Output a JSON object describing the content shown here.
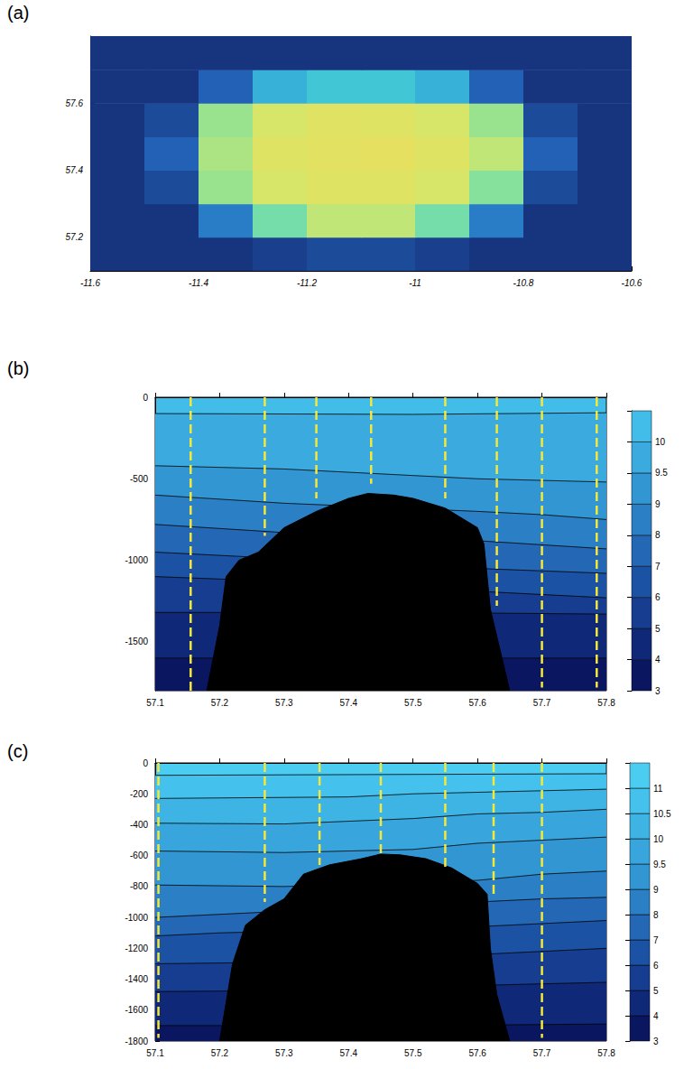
{
  "chart_data": [
    {
      "label": "(a)",
      "type": "heatmap",
      "x": [
        -11.55,
        -11.45,
        -11.35,
        -11.25,
        -11.15,
        -11.05,
        -10.95,
        -10.85,
        -10.75,
        -10.65
      ],
      "y": [
        57.15,
        57.25,
        57.35,
        57.45,
        57.55,
        57.65,
        57.75
      ],
      "z": [
        [
          -1800,
          -1800,
          -1800,
          -1750,
          -1700,
          -1700,
          -1750,
          -1800,
          -1800,
          -1800
        ],
        [
          -1800,
          -1800,
          -1500,
          -1000,
          -800,
          -800,
          -1000,
          -1500,
          -1800,
          -1800
        ],
        [
          -1800,
          -1700,
          -900,
          -700,
          -650,
          -650,
          -700,
          -950,
          -1700,
          -1800
        ],
        [
          -1800,
          -1600,
          -850,
          -650,
          -620,
          -600,
          -650,
          -800,
          -1600,
          -1800
        ],
        [
          -1800,
          -1700,
          -900,
          -700,
          -640,
          -650,
          -700,
          -900,
          -1700,
          -1800
        ],
        [
          -1800,
          -1800,
          -1600,
          -1300,
          -1200,
          -1200,
          -1300,
          -1600,
          -1800,
          -1800
        ],
        [
          -1800,
          -1800,
          -1800,
          -1800,
          -1800,
          -1800,
          -1800,
          -1800,
          -1800,
          -1800
        ]
      ],
      "zlim": [
        -1800,
        -550
      ],
      "xlim": [
        -11.6,
        -10.6
      ],
      "xticks": [
        -11.6,
        -11.4,
        -11.2,
        -11,
        -10.8,
        -10.6
      ],
      "ylim": [
        57.1,
        57.8
      ],
      "yticks": [
        57.2,
        57.4,
        57.6
      ]
    },
    {
      "label": "(b)",
      "type": "contour",
      "xlim": [
        57.1,
        57.8
      ],
      "xticks": [
        57.1,
        57.2,
        57.3,
        57.4,
        57.5,
        57.6,
        57.7,
        57.8
      ],
      "ylim": [
        -1800,
        0
      ],
      "yticks": [
        0,
        -500,
        -1000,
        -1500
      ],
      "levels": [
        3,
        4,
        5,
        6,
        7,
        8,
        9,
        9.5,
        10
      ],
      "colors": [
        "#0b1660",
        "#0f2878",
        "#163d8f",
        "#1c52a3",
        "#2367b5",
        "#2b7fc4",
        "#3296d2",
        "#3aaadf",
        "#42bdea"
      ],
      "contours": [
        {
          "level": 10,
          "points": [
            [
              57.1,
              -100
            ],
            [
              57.5,
              -105
            ],
            [
              57.8,
              -95
            ]
          ]
        },
        {
          "level": 9.5,
          "points": [
            [
              57.1,
              -420
            ],
            [
              57.3,
              -440
            ],
            [
              57.5,
              -480
            ],
            [
              57.6,
              -500
            ],
            [
              57.8,
              -520
            ]
          ]
        },
        {
          "level": 9,
          "points": [
            [
              57.1,
              -600
            ],
            [
              57.3,
              -650
            ],
            [
              57.6,
              -700
            ],
            [
              57.7,
              -720
            ],
            [
              57.8,
              -750
            ]
          ]
        },
        {
          "level": 8,
          "points": [
            [
              57.1,
              -780
            ],
            [
              57.3,
              -830
            ],
            [
              57.6,
              -880
            ],
            [
              57.8,
              -930
            ]
          ]
        },
        {
          "level": 7,
          "points": [
            [
              57.1,
              -950
            ],
            [
              57.3,
              -990
            ],
            [
              57.6,
              -1050
            ],
            [
              57.8,
              -1080
            ]
          ]
        },
        {
          "level": 6,
          "points": [
            [
              57.1,
              -1100
            ],
            [
              57.3,
              -1130
            ],
            [
              57.6,
              -1190
            ],
            [
              57.8,
              -1230
            ]
          ]
        },
        {
          "level": 5,
          "points": [
            [
              57.1,
              -1320
            ],
            [
              57.5,
              -1320
            ],
            [
              57.8,
              -1330
            ]
          ]
        },
        {
          "level": 4,
          "points": [
            [
              57.1,
              -1600
            ],
            [
              57.5,
              -1600
            ],
            [
              57.8,
              -1600
            ]
          ]
        }
      ],
      "bathymetry": [
        [
          57.18,
          -1800
        ],
        [
          57.2,
          -1400
        ],
        [
          57.21,
          -1100
        ],
        [
          57.23,
          -1000
        ],
        [
          57.26,
          -950
        ],
        [
          57.3,
          -800
        ],
        [
          57.35,
          -700
        ],
        [
          57.4,
          -620
        ],
        [
          57.43,
          -590
        ],
        [
          57.47,
          -600
        ],
        [
          57.5,
          -620
        ],
        [
          57.55,
          -680
        ],
        [
          57.6,
          -800
        ],
        [
          57.61,
          -900
        ],
        [
          57.62,
          -1300
        ],
        [
          57.65,
          -1800
        ]
      ],
      "stations": [
        {
          "x": 57.155,
          "bottom": -1800
        },
        {
          "x": 57.27,
          "bottom": -850
        },
        {
          "x": 57.35,
          "bottom": -620
        },
        {
          "x": 57.435,
          "bottom": -530
        },
        {
          "x": 57.55,
          "bottom": -620
        },
        {
          "x": 57.63,
          "bottom": -1280
        },
        {
          "x": 57.7,
          "bottom": -1780
        },
        {
          "x": 57.785,
          "bottom": -1780
        }
      ]
    },
    {
      "label": "(c)",
      "type": "contour",
      "xlim": [
        57.1,
        57.8
      ],
      "xticks": [
        57.1,
        57.2,
        57.3,
        57.4,
        57.5,
        57.6,
        57.7,
        57.8
      ],
      "ylim": [
        -1800,
        0
      ],
      "yticks": [
        0,
        -200,
        -400,
        -600,
        -800,
        -1000,
        -1200,
        -1400,
        -1600,
        -1800
      ],
      "levels": [
        3,
        4,
        5,
        6,
        7,
        8,
        9,
        9.5,
        10,
        10.5,
        11
      ],
      "colors": [
        "#0b1660",
        "#0f2878",
        "#163d8f",
        "#1c52a3",
        "#2367b5",
        "#2b7fc4",
        "#3296d2",
        "#38a6dc",
        "#3eb4e4",
        "#44c1ec",
        "#4bcdf2"
      ],
      "contours": [
        {
          "level": 11,
          "points": [
            [
              57.1,
              -80
            ],
            [
              57.8,
              -70
            ]
          ]
        },
        {
          "level": 10.5,
          "points": [
            [
              57.1,
              -230
            ],
            [
              57.4,
              -220
            ],
            [
              57.5,
              -200
            ],
            [
              57.8,
              -170
            ]
          ]
        },
        {
          "level": 10,
          "points": [
            [
              57.1,
              -390
            ],
            [
              57.3,
              -395
            ],
            [
              57.5,
              -360
            ],
            [
              57.6,
              -330
            ],
            [
              57.7,
              -320
            ],
            [
              57.8,
              -300
            ]
          ]
        },
        {
          "level": 9.5,
          "points": [
            [
              57.1,
              -570
            ],
            [
              57.3,
              -580
            ],
            [
              57.5,
              -560
            ],
            [
              57.6,
              -520
            ],
            [
              57.7,
              -500
            ],
            [
              57.8,
              -480
            ]
          ]
        },
        {
          "level": 9,
          "points": [
            [
              57.1,
              -790
            ],
            [
              57.3,
              -800
            ],
            [
              57.6,
              -760
            ],
            [
              57.7,
              -720
            ],
            [
              57.8,
              -700
            ]
          ]
        },
        {
          "level": 8,
          "points": [
            [
              57.1,
              -1000
            ],
            [
              57.2,
              -980
            ],
            [
              57.3,
              -960
            ],
            [
              57.6,
              -900
            ],
            [
              57.7,
              -880
            ],
            [
              57.8,
              -870
            ]
          ]
        },
        {
          "level": 7,
          "points": [
            [
              57.1,
              -1120
            ],
            [
              57.2,
              -1100
            ],
            [
              57.6,
              -1060
            ],
            [
              57.7,
              -1040
            ],
            [
              57.8,
              -1020
            ]
          ]
        },
        {
          "level": 6,
          "points": [
            [
              57.1,
              -1300
            ],
            [
              57.3,
              -1290
            ],
            [
              57.6,
              -1240
            ],
            [
              57.8,
              -1200
            ]
          ]
        },
        {
          "level": 5,
          "points": [
            [
              57.1,
              -1480
            ],
            [
              57.4,
              -1470
            ],
            [
              57.6,
              -1440
            ],
            [
              57.8,
              -1420
            ]
          ]
        },
        {
          "level": 4,
          "points": [
            [
              57.1,
              -1700
            ],
            [
              57.5,
              -1700
            ],
            [
              57.8,
              -1690
            ]
          ]
        }
      ],
      "bathymetry": [
        [
          57.2,
          -1800
        ],
        [
          57.22,
          -1300
        ],
        [
          57.24,
          -1050
        ],
        [
          57.27,
          -950
        ],
        [
          57.3,
          -880
        ],
        [
          57.33,
          -720
        ],
        [
          57.37,
          -660
        ],
        [
          57.42,
          -620
        ],
        [
          57.45,
          -590
        ],
        [
          57.48,
          -595
        ],
        [
          57.52,
          -620
        ],
        [
          57.56,
          -680
        ],
        [
          57.6,
          -780
        ],
        [
          57.615,
          -850
        ],
        [
          57.62,
          -1200
        ],
        [
          57.63,
          -1500
        ],
        [
          57.65,
          -1800
        ]
      ],
      "stations": [
        {
          "x": 57.105,
          "bottom": -1780
        },
        {
          "x": 57.27,
          "bottom": -900
        },
        {
          "x": 57.355,
          "bottom": -660
        },
        {
          "x": 57.45,
          "bottom": -600
        },
        {
          "x": 57.55,
          "bottom": -700
        },
        {
          "x": 57.625,
          "bottom": -850
        },
        {
          "x": 57.7,
          "bottom": -1780
        }
      ]
    }
  ]
}
